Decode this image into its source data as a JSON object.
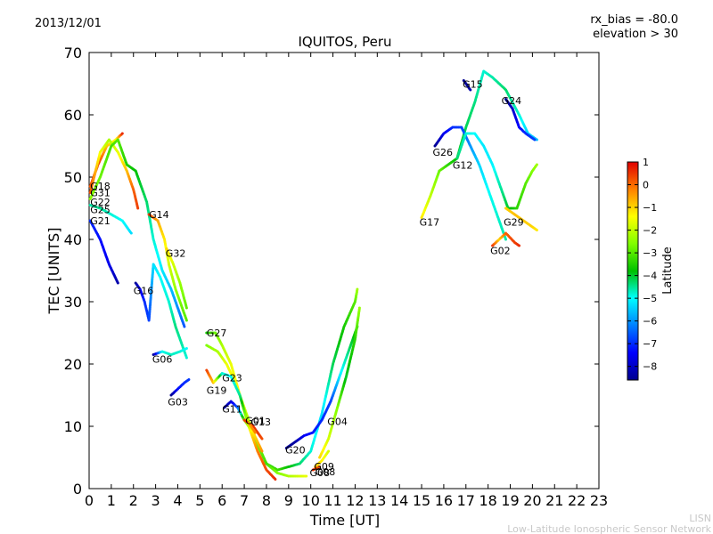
{
  "date_label": "2013/12/01",
  "params": {
    "rx_bias": "rx_bias = -80.0",
    "elevation": "elevation > 30"
  },
  "watermark": {
    "line1": "LISN",
    "line2": "Low-Latitude Ionospheric Sensor Network"
  },
  "chart_data": {
    "type": "scatter",
    "title": "IQUITOS, Peru",
    "xlabel": "Time [UT]",
    "ylabel": "TEC [UNITS]",
    "xlim": [
      0,
      23
    ],
    "ylim": [
      0,
      70
    ],
    "xticks": [
      0,
      1,
      2,
      3,
      4,
      5,
      6,
      7,
      8,
      9,
      10,
      11,
      12,
      13,
      14,
      15,
      16,
      17,
      18,
      19,
      20,
      21,
      22,
      23
    ],
    "yticks": [
      0,
      10,
      20,
      30,
      40,
      50,
      60,
      70
    ],
    "grid": false,
    "colorbar": {
      "label": "Latitude",
      "range": [
        -8.6,
        1.0
      ],
      "ticks": [
        1,
        0,
        -1,
        -2,
        -3,
        -4,
        -5,
        -6,
        -7,
        -8
      ]
    },
    "series": [
      {
        "name": "G18",
        "points": [
          [
            0.05,
            48.5,
            0.2
          ],
          [
            0.4,
            52,
            0.5
          ],
          [
            0.8,
            55,
            -0.8
          ],
          [
            1.2,
            56,
            -1.5
          ],
          [
            1.5,
            57,
            0.6
          ]
        ]
      },
      {
        "name": "G31",
        "points": [
          [
            0.05,
            47.5,
            0.3
          ],
          [
            0.5,
            54,
            -1.5
          ],
          [
            0.9,
            56,
            -2.2
          ],
          [
            1.3,
            54,
            -1.6
          ],
          [
            1.7,
            51,
            -0.8
          ],
          [
            2.0,
            48,
            0.1
          ],
          [
            2.2,
            45,
            0.4
          ]
        ]
      },
      {
        "name": "G22",
        "points": [
          [
            0.05,
            46.5,
            -2.5
          ],
          [
            0.5,
            50,
            -2.8
          ],
          [
            1.0,
            55,
            -3.2
          ],
          [
            1.3,
            56,
            -3.0
          ],
          [
            1.7,
            52,
            -3.5
          ],
          [
            2.1,
            51,
            -3.8
          ],
          [
            2.6,
            46,
            -4.3
          ],
          [
            2.9,
            40,
            -4.8
          ],
          [
            3.3,
            35,
            -5.2
          ],
          [
            3.7,
            32,
            -5.6
          ],
          [
            4.1,
            28,
            -6.2
          ],
          [
            4.3,
            26,
            -6.6
          ]
        ]
      },
      {
        "name": "G25",
        "points": [
          [
            0.05,
            45.5,
            -4.6
          ],
          [
            0.5,
            45,
            -4.5
          ],
          [
            1.0,
            44,
            -4.8
          ],
          [
            1.5,
            43,
            -5.0
          ],
          [
            1.9,
            41,
            -5.3
          ]
        ]
      },
      {
        "name": "G21",
        "points": [
          [
            0.05,
            43,
            -7.0
          ],
          [
            0.5,
            40,
            -7.3
          ],
          [
            0.9,
            36,
            -7.6
          ],
          [
            1.3,
            33,
            -8.3
          ]
        ]
      },
      {
        "name": "G14",
        "points": [
          [
            2.7,
            44,
            0.4
          ],
          [
            3.1,
            43,
            -0.6
          ],
          [
            3.4,
            40,
            -1.2
          ],
          [
            3.6,
            36,
            -1.8
          ],
          [
            3.9,
            32,
            -2.4
          ],
          [
            4.2,
            29,
            -2.8
          ],
          [
            4.4,
            27,
            -3.0
          ]
        ]
      },
      {
        "name": "G32",
        "points": [
          [
            3.5,
            38.5,
            -1.0
          ],
          [
            3.8,
            36,
            -1.8
          ],
          [
            4.1,
            33,
            -2.4
          ],
          [
            4.4,
            29,
            -2.9
          ]
        ]
      },
      {
        "name": "G16",
        "points": [
          [
            2.1,
            33,
            -8.5
          ],
          [
            2.3,
            32,
            -7.5
          ],
          [
            2.5,
            30,
            -7.0
          ],
          [
            2.7,
            27,
            -6.8
          ],
          [
            2.9,
            36,
            -5.3
          ],
          [
            3.2,
            34,
            -5.0
          ],
          [
            3.6,
            30,
            -4.8
          ],
          [
            3.9,
            26,
            -4.4
          ],
          [
            4.2,
            23,
            -4.6
          ],
          [
            4.4,
            21,
            -4.8
          ]
        ]
      },
      {
        "name": "G06",
        "points": [
          [
            2.9,
            21.5,
            -8.6
          ],
          [
            3.3,
            22,
            -4.9
          ],
          [
            3.7,
            21.5,
            -4.7
          ],
          [
            4.1,
            22,
            -4.8
          ],
          [
            4.4,
            22.5,
            -5.0
          ]
        ]
      },
      {
        "name": "G03",
        "points": [
          [
            3.7,
            15,
            -8.6
          ],
          [
            4.0,
            16,
            -7.3
          ],
          [
            4.3,
            17,
            -7.0
          ],
          [
            4.5,
            17.5,
            -6.9
          ]
        ]
      },
      {
        "name": "G27",
        "points": [
          [
            5.3,
            25,
            -3.6
          ],
          [
            5.7,
            25,
            -2.8
          ],
          [
            6.0,
            23,
            -2.2
          ],
          [
            6.4,
            20,
            -1.6
          ],
          [
            6.8,
            15,
            -1.2
          ],
          [
            7.2,
            10,
            -1.8
          ],
          [
            7.6,
            7,
            -2.5
          ],
          [
            8.0,
            4,
            -3.6
          ],
          [
            8.5,
            3,
            -3.2
          ],
          [
            9.0,
            3.5,
            -3.8
          ],
          [
            9.5,
            4,
            -4.3
          ],
          [
            10.0,
            6,
            -4.8
          ],
          [
            10.5,
            12,
            -5.3
          ],
          [
            11.0,
            20,
            -4.2
          ],
          [
            11.5,
            26,
            -3.6
          ],
          [
            12.0,
            30,
            -3.0
          ],
          [
            12.1,
            32,
            -2.3
          ]
        ]
      },
      {
        "name": "G23",
        "points": [
          [
            5.3,
            23,
            -2.6
          ],
          [
            5.8,
            22,
            -2.2
          ],
          [
            6.2,
            20,
            -1.6
          ],
          [
            6.6,
            17,
            -1.3
          ],
          [
            7.0,
            13,
            -1.8
          ],
          [
            7.5,
            8,
            -2.6
          ],
          [
            8.0,
            4,
            -3.2
          ],
          [
            8.5,
            2.5,
            -2.6
          ],
          [
            9.0,
            2,
            -2.2
          ],
          [
            9.5,
            2,
            -1.8
          ],
          [
            9.8,
            2,
            -1.6
          ]
        ]
      },
      {
        "name": "G19",
        "points": [
          [
            5.3,
            19,
            0.4
          ],
          [
            5.6,
            17,
            -0.8
          ],
          [
            6.0,
            18.5,
            -4.8
          ],
          [
            6.4,
            18,
            -5.0
          ],
          [
            6.8,
            15,
            -4.5
          ],
          [
            7.2,
            10,
            -1.5
          ],
          [
            7.6,
            6,
            -0.2
          ],
          [
            8.0,
            3,
            0.3
          ],
          [
            8.4,
            1.5,
            0.6
          ]
        ]
      },
      {
        "name": "G11",
        "points": [
          [
            6.1,
            13,
            -8.4
          ],
          [
            6.4,
            14,
            -7.8
          ],
          [
            6.7,
            13,
            -6.5
          ],
          [
            7.0,
            11,
            -2.8
          ],
          [
            7.4,
            9,
            -1.2
          ],
          [
            7.8,
            6,
            -0.4
          ]
        ]
      },
      {
        "name": "G01",
        "points": [
          [
            7.0,
            11,
            0.4
          ],
          [
            7.4,
            10,
            0.6
          ],
          [
            7.8,
            8,
            0.3
          ]
        ]
      },
      {
        "name": "G13",
        "points": [
          [
            7.2,
            10.5,
            -0.5
          ],
          [
            7.5,
            9,
            -0.2
          ]
        ]
      },
      {
        "name": "G20",
        "points": [
          [
            8.9,
            6.5,
            -8.5
          ],
          [
            9.3,
            7.5,
            -8.4
          ],
          [
            9.7,
            8.5,
            -7.5
          ],
          [
            10.1,
            9,
            -7.2
          ],
          [
            10.5,
            11,
            -7.0
          ],
          [
            10.9,
            14,
            -6.8
          ],
          [
            11.3,
            18,
            -5.2
          ],
          [
            11.7,
            22,
            -4.4
          ],
          [
            12.1,
            26,
            -3.5
          ]
        ]
      },
      {
        "name": "G04",
        "points": [
          [
            10.4,
            5,
            -1.0
          ],
          [
            10.8,
            8,
            -1.8
          ],
          [
            11.2,
            13,
            -2.6
          ],
          [
            11.6,
            18,
            -4.0
          ],
          [
            12.0,
            24,
            -3.4
          ],
          [
            12.2,
            29,
            -2.4
          ]
        ]
      },
      {
        "name": "G09",
        "points": [
          [
            10.2,
            3.5,
            -0.8
          ],
          [
            10.5,
            4.5,
            -1.3
          ],
          [
            10.8,
            6,
            -1.8
          ]
        ]
      },
      {
        "name": "G08",
        "points": [
          [
            10.1,
            3,
            0.6
          ],
          [
            10.4,
            3.5,
            0.2
          ]
        ]
      },
      {
        "name": "G17",
        "points": [
          [
            15.0,
            43.5,
            -1.2
          ],
          [
            15.4,
            47,
            -2.0
          ],
          [
            15.8,
            51,
            -2.8
          ],
          [
            16.2,
            52,
            -3.4
          ],
          [
            16.6,
            53,
            -3.8
          ],
          [
            17.0,
            58,
            -4.2
          ],
          [
            17.4,
            62,
            -4.4
          ],
          [
            17.8,
            67,
            -4.8
          ],
          [
            18.2,
            66,
            -4.6
          ],
          [
            18.8,
            64,
            -4.3
          ],
          [
            19.4,
            60,
            -4.8
          ],
          [
            19.8,
            57,
            -5.4
          ],
          [
            20.2,
            56,
            -5.6
          ]
        ]
      },
      {
        "name": "G15",
        "points": [
          [
            16.9,
            65.5,
            -8.6
          ],
          [
            17.2,
            64,
            -8.3
          ]
        ]
      },
      {
        "name": "G24",
        "points": [
          [
            18.8,
            62.5,
            -8.6
          ],
          [
            19.1,
            61,
            -8.0
          ],
          [
            19.4,
            58,
            -7.4
          ],
          [
            19.7,
            57,
            -7.0
          ],
          [
            20.1,
            56,
            -6.8
          ]
        ]
      },
      {
        "name": "G26",
        "points": [
          [
            15.6,
            55,
            -8.6
          ],
          [
            16.0,
            57,
            -7.6
          ],
          [
            16.4,
            58,
            -7.0
          ],
          [
            16.8,
            58,
            -6.8
          ],
          [
            17.2,
            55,
            -6.0
          ],
          [
            17.6,
            52,
            -5.4
          ],
          [
            18.0,
            48,
            -5.0
          ],
          [
            18.4,
            44,
            -4.8
          ],
          [
            18.8,
            40,
            -4.6
          ]
        ]
      },
      {
        "name": "G12",
        "points": [
          [
            16.6,
            53,
            -4.3
          ],
          [
            17.0,
            57,
            -4.8
          ],
          [
            17.4,
            57,
            -5.0
          ],
          [
            17.8,
            55,
            -5.2
          ],
          [
            18.2,
            52,
            -5.1
          ],
          [
            18.6,
            48,
            -4.5
          ],
          [
            18.9,
            45,
            -4.0
          ],
          [
            19.3,
            45,
            -3.4
          ],
          [
            19.7,
            49,
            -3.0
          ],
          [
            20.0,
            51,
            -2.6
          ],
          [
            20.2,
            52,
            -2.3
          ]
        ]
      },
      {
        "name": "G29",
        "points": [
          [
            18.8,
            45,
            -1.0
          ],
          [
            19.2,
            44,
            -0.8
          ],
          [
            19.6,
            43,
            -0.9
          ],
          [
            20.0,
            42,
            -1.0
          ],
          [
            20.2,
            41.5,
            -1.2
          ]
        ]
      },
      {
        "name": "G02",
        "points": [
          [
            18.2,
            39,
            0.5
          ],
          [
            18.5,
            40,
            -1.0
          ],
          [
            18.8,
            41,
            0.1
          ],
          [
            19.2,
            39.5,
            0.4
          ],
          [
            19.4,
            39,
            0.6
          ]
        ]
      }
    ],
    "sat_labels": [
      {
        "text": "G18",
        "x": 0.05,
        "y": 48.6
      },
      {
        "text": "G31",
        "x": 0.05,
        "y": 47.5
      },
      {
        "text": "G22",
        "x": 0.05,
        "y": 46.0
      },
      {
        "text": "G25",
        "x": 0.05,
        "y": 44.8
      },
      {
        "text": "G21",
        "x": 0.05,
        "y": 43.0
      },
      {
        "text": "G14",
        "x": 2.7,
        "y": 44.0
      },
      {
        "text": "G32",
        "x": 3.45,
        "y": 37.8
      },
      {
        "text": "G16",
        "x": 2.0,
        "y": 31.8
      },
      {
        "text": "G06",
        "x": 2.85,
        "y": 20.8
      },
      {
        "text": "G03",
        "x": 3.55,
        "y": 13.9
      },
      {
        "text": "G27",
        "x": 5.3,
        "y": 25.0
      },
      {
        "text": "G23",
        "x": 6.0,
        "y": 17.8
      },
      {
        "text": "G19",
        "x": 5.3,
        "y": 15.8
      },
      {
        "text": "G11",
        "x": 6.0,
        "y": 12.8
      },
      {
        "text": "G01",
        "x": 7.05,
        "y": 10.9
      },
      {
        "text": "G13",
        "x": 7.3,
        "y": 10.7
      },
      {
        "text": "G20",
        "x": 8.85,
        "y": 6.2
      },
      {
        "text": "G04",
        "x": 10.75,
        "y": 10.8
      },
      {
        "text": "G09",
        "x": 10.15,
        "y": 3.6
      },
      {
        "text": "G08",
        "x": 10.2,
        "y": 2.7
      },
      {
        "text": "G08",
        "x": 9.95,
        "y": 2.6
      },
      {
        "text": "G17",
        "x": 14.9,
        "y": 42.8
      },
      {
        "text": "G15",
        "x": 16.85,
        "y": 64.9
      },
      {
        "text": "G24",
        "x": 18.6,
        "y": 62.3
      },
      {
        "text": "G26",
        "x": 15.5,
        "y": 54.0
      },
      {
        "text": "G12",
        "x": 16.4,
        "y": 51.9
      },
      {
        "text": "G29",
        "x": 18.7,
        "y": 42.8
      },
      {
        "text": "G02",
        "x": 18.1,
        "y": 38.2
      }
    ]
  }
}
